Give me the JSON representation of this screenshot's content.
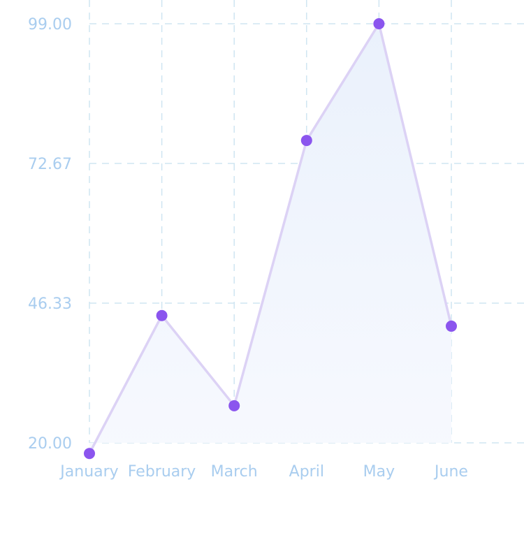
{
  "chart_data": {
    "type": "area",
    "categories": [
      "January",
      "February",
      "March",
      "April",
      "May",
      "June"
    ],
    "values": [
      18,
      44,
      27,
      77,
      99,
      42
    ],
    "ylim": [
      20.0,
      99.0
    ],
    "y_ticks": [
      "99.00",
      "72.67",
      "46.33",
      "20.00"
    ],
    "grid": true,
    "legend": "none",
    "colors": {
      "line": "#dcd2f5",
      "point": "#8b55ee",
      "fill_top": "#eaf1fc",
      "fill_bottom": "#f7f9fe",
      "grid": "#cfe5f2",
      "tick_text": "#a9cdef"
    }
  }
}
